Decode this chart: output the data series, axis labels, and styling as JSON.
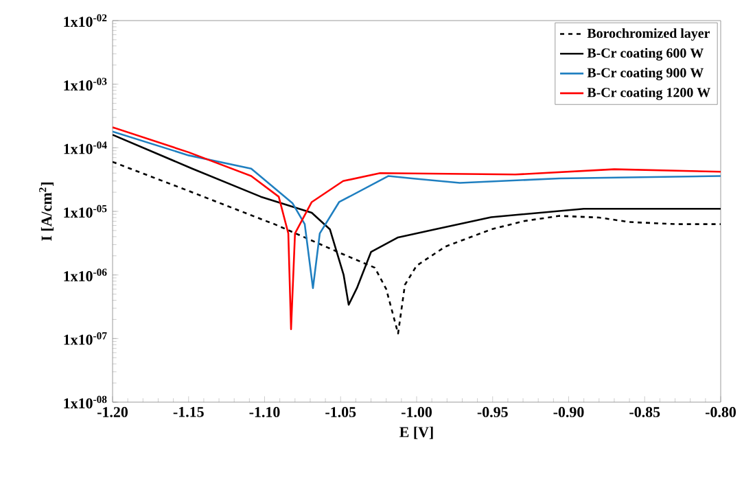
{
  "chart_data": {
    "type": "line",
    "xlabel": "E [V]",
    "ylabel": "I [A/cm$^{2}$]",
    "log": "y",
    "legend": "top right",
    "marker": "none",
    "xlim": [
      -1.2,
      -0.8
    ],
    "ylim": [
      1e-08,
      0.01
    ],
    "xticks": [
      {
        "value": -1.2,
        "label": "-1.20"
      },
      {
        "value": -1.15,
        "label": "-1.15"
      },
      {
        "value": -1.1,
        "label": "-1.10"
      },
      {
        "value": -1.05,
        "label": "-1.05"
      },
      {
        "value": -1.0,
        "label": "-1.00"
      },
      {
        "value": -0.95,
        "label": "-0.95"
      },
      {
        "value": -0.9,
        "label": "-0.90"
      },
      {
        "value": -0.85,
        "label": "-0.85"
      },
      {
        "value": -0.8,
        "label": "-0.80"
      }
    ],
    "yticks": [
      {
        "value": 1e-08,
        "label": "1x10$^{-08}$"
      },
      {
        "value": 1e-07,
        "label": "1x10$^{-07}$"
      },
      {
        "value": 1e-06,
        "label": "1x10$^{-06}$"
      },
      {
        "value": 1e-05,
        "label": "1x10$^{-05}$"
      },
      {
        "value": 0.0001,
        "label": "1x10$^{-04}$"
      },
      {
        "value": 0.001,
        "label": "1x10$^{-03}$"
      },
      {
        "value": 0.01,
        "label": "1x10$^{-02}$"
      }
    ],
    "series": [
      {
        "name": "Borochromized layer",
        "color": "#000000",
        "line_style": "dashed",
        "x": [
          -1.2,
          -1.15,
          -1.1,
          -1.0935,
          -1.05,
          -1.0275,
          -1.02,
          -1.0122,
          -1.0077,
          -1.0,
          -0.981,
          -0.951,
          -0.93,
          -0.906,
          -0.88,
          -0.86,
          -0.83,
          -0.8
        ],
        "values": [
          6e-05,
          2.1e-05,
          7.2e-06,
          6.3e-06,
          2.2e-06,
          1.3e-06,
          6e-07,
          1.2e-07,
          7e-07,
          1.4e-06,
          2.8e-06,
          5.2e-06,
          7e-06,
          8.5e-06,
          8e-06,
          6.8e-06,
          6.3e-06,
          6.3e-06
        ]
      },
      {
        "name": "B-Cr coating 600 W",
        "color": "#000000",
        "line_style": "solid",
        "x": [
          -1.2,
          -1.1476,
          -1.1025,
          -1.069,
          -1.057,
          -1.048,
          -1.0447,
          -1.0393,
          -1.03,
          -1.0122,
          -0.988,
          -0.951,
          -0.89,
          -0.8
        ],
        "values": [
          0.00016,
          4.7e-05,
          1.7e-05,
          9.5e-06,
          5.2e-06,
          1e-06,
          3.4e-07,
          6.2e-07,
          2.3e-06,
          3.9e-06,
          5.2e-06,
          8.1e-06,
          1.1e-05,
          1.1e-05
        ]
      },
      {
        "name": "B-Cr coating 900 W",
        "color": "#1f7fc0",
        "line_style": "solid",
        "x": [
          -1.2,
          -1.15,
          -1.1088,
          -1.0817,
          -1.0736,
          -1.0682,
          -1.0637,
          -1.051,
          -1.0185,
          -1.003,
          -0.9716,
          -0.906,
          -0.8
        ],
        "values": [
          0.00018,
          7.6e-05,
          4.7e-05,
          1.35e-05,
          6.3e-06,
          6.2e-07,
          4.5e-06,
          1.4e-05,
          3.6e-05,
          3.3e-05,
          2.8e-05,
          3.3e-05,
          3.6e-05
        ]
      },
      {
        "name": "B-Cr coating 1200 W",
        "color": "#ff0000",
        "line_style": "solid",
        "x": [
          -1.2,
          -1.15,
          -1.1088,
          -1.0907,
          -1.0844,
          -1.0826,
          -1.08,
          -1.069,
          -1.0483,
          -1.024,
          -0.935,
          -0.87,
          -0.8
        ],
        "values": [
          0.00021,
          8.5e-05,
          3.6e-05,
          1.7e-05,
          4.5e-06,
          1.4e-07,
          4.5e-06,
          1.4e-05,
          3e-05,
          4e-05,
          3.8e-05,
          4.6e-05,
          4.2e-05
        ]
      }
    ]
  }
}
